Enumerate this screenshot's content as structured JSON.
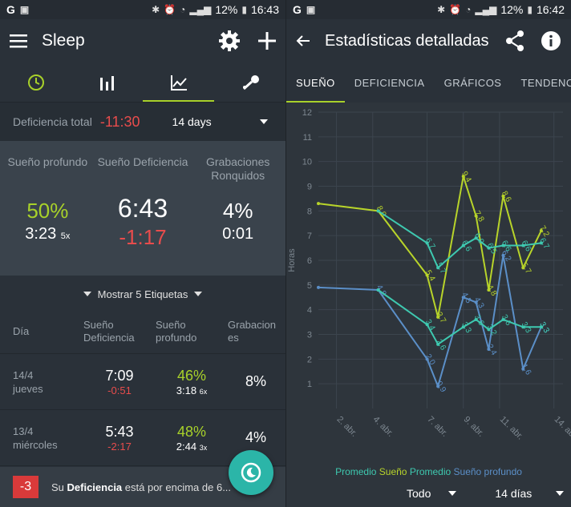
{
  "left": {
    "status": {
      "carrier": "G",
      "battery": "12%",
      "time": "16:43"
    },
    "appbar": {
      "title": "Sleep"
    },
    "icons": {
      "menu": "menu-icon",
      "settings": "gear-icon",
      "add": "plus-icon"
    },
    "summary": {
      "label": "Deficiencia total",
      "value": "-11:30",
      "period": "14 days"
    },
    "stats": [
      {
        "heading": "Sueño profundo",
        "big": "50%",
        "sub": "3:23",
        "subsmall": "5x"
      },
      {
        "heading": "Sueño Deficiencia",
        "big": "6:43",
        "sub": "-1:17",
        "subsmall": ""
      },
      {
        "heading": "Grabaciones Ronquidos",
        "big": "4%",
        "sub": "0:01",
        "subsmall": ""
      }
    ],
    "labels_toggle": "Mostrar 5 Etiquetas",
    "table": {
      "headers": [
        "Día",
        "Sueño Deficiencia",
        "Sueño profundo",
        "Grabacion es"
      ],
      "rows": [
        {
          "date": "14/4",
          "day": "jueves",
          "sleep": "7:09",
          "deficit": "-0:51",
          "deep": "46%",
          "deep_time": "3:18",
          "deep_count": "6x",
          "rec": "8%"
        },
        {
          "date": "13/4",
          "day": "miércoles",
          "sleep": "5:43",
          "deficit": "-2:17",
          "deep": "48%",
          "deep_time": "2:44",
          "deep_count": "3x",
          "rec": "4%"
        }
      ]
    },
    "snackbar": {
      "badge": "-3",
      "text_pre": "Su ",
      "text_bold": "Deficiencia",
      "text_post": " está por encima de 6..."
    }
  },
  "right": {
    "status": {
      "carrier": "G",
      "battery": "12%",
      "time": "16:42"
    },
    "appbar": {
      "title": "Estadísticas detalladas"
    },
    "tabs": [
      "SUEÑO",
      "DEFICIENCIA",
      "GRÁFICOS",
      "TENDENCIA"
    ],
    "legend": [
      {
        "label": "Promedio",
        "color": "#3ec9b0"
      },
      {
        "label": "Sueño",
        "color": "#b8d42a"
      },
      {
        "label": "Promedio",
        "color": "#3ec9b0"
      },
      {
        "label": "Sueño profundo",
        "color": "#5b8fc8"
      }
    ],
    "filters": {
      "range": "Todo",
      "period": "14 días"
    }
  },
  "chart_data": {
    "type": "line",
    "ylabel": "Horas",
    "ylim": [
      0,
      12
    ],
    "yticks": [
      1,
      2,
      3,
      4,
      5,
      6,
      7,
      8,
      9,
      10,
      11,
      12
    ],
    "xticks": [
      "2. abr.",
      "4. abr.",
      "7. abr.",
      "9. abr.",
      "11. abr.",
      "14. abr."
    ],
    "xtick_pos": [
      2,
      4,
      7,
      9,
      11,
      14
    ],
    "xlim": [
      1,
      14.5
    ],
    "series": [
      {
        "name": "Sueño",
        "color": "#b8d42a",
        "points": [
          [
            1,
            8.3
          ],
          [
            4.3,
            8.0
          ],
          [
            7,
            5.4
          ],
          [
            7.6,
            3.7
          ],
          [
            9,
            9.4
          ],
          [
            9.7,
            7.8
          ],
          [
            10.4,
            4.8
          ],
          [
            11.2,
            8.6
          ],
          [
            12.3,
            5.7
          ],
          [
            13.3,
            7.2
          ]
        ],
        "labels": [
          "",
          "8.0",
          "5.4",
          "3.7",
          "9.4",
          "7.8",
          "4.8",
          "8.6",
          "5.7",
          "7.2"
        ]
      },
      {
        "name": "Promedio",
        "color": "#3ec9b0",
        "points": [
          [
            4.3,
            8.0
          ],
          [
            7,
            6.7
          ],
          [
            7.6,
            5.7
          ],
          [
            9,
            6.6
          ],
          [
            9.7,
            6.9
          ],
          [
            10.4,
            6.5
          ],
          [
            11.2,
            6.6
          ],
          [
            12.3,
            6.6
          ],
          [
            13.3,
            6.7
          ]
        ],
        "labels": [
          "",
          "6.7",
          "5.7",
          "6.6",
          "6.9",
          "6.5",
          "6.6",
          "6.6",
          "6.7"
        ]
      },
      {
        "name": "Sueño profundo",
        "color": "#5b8fc8",
        "points": [
          [
            1,
            4.9
          ],
          [
            4.3,
            4.8
          ],
          [
            7,
            2.0
          ],
          [
            7.6,
            0.9
          ],
          [
            9,
            4.5
          ],
          [
            9.7,
            4.3
          ],
          [
            10.4,
            2.4
          ],
          [
            11.2,
            6.2
          ],
          [
            12.3,
            1.6
          ],
          [
            13.3,
            3.3
          ]
        ],
        "labels": [
          "",
          "4.8",
          "2.0",
          "0.9",
          "4.5",
          "4.3",
          "2.4",
          "6.2",
          "1.6",
          "3.3"
        ]
      },
      {
        "name": "Promedio",
        "color": "#3ec9b0",
        "points": [
          [
            4.3,
            4.8
          ],
          [
            7,
            3.4
          ],
          [
            7.6,
            2.6
          ],
          [
            9,
            3.3
          ],
          [
            9.7,
            3.6
          ],
          [
            10.4,
            3.2
          ],
          [
            11.2,
            3.6
          ],
          [
            12.3,
            3.3
          ],
          [
            13.3,
            3.3
          ]
        ],
        "labels": [
          "",
          "3.4",
          "2.6",
          "3.3",
          "3.6",
          "3.2",
          "3.6",
          "3.3",
          "3.3"
        ]
      }
    ]
  }
}
